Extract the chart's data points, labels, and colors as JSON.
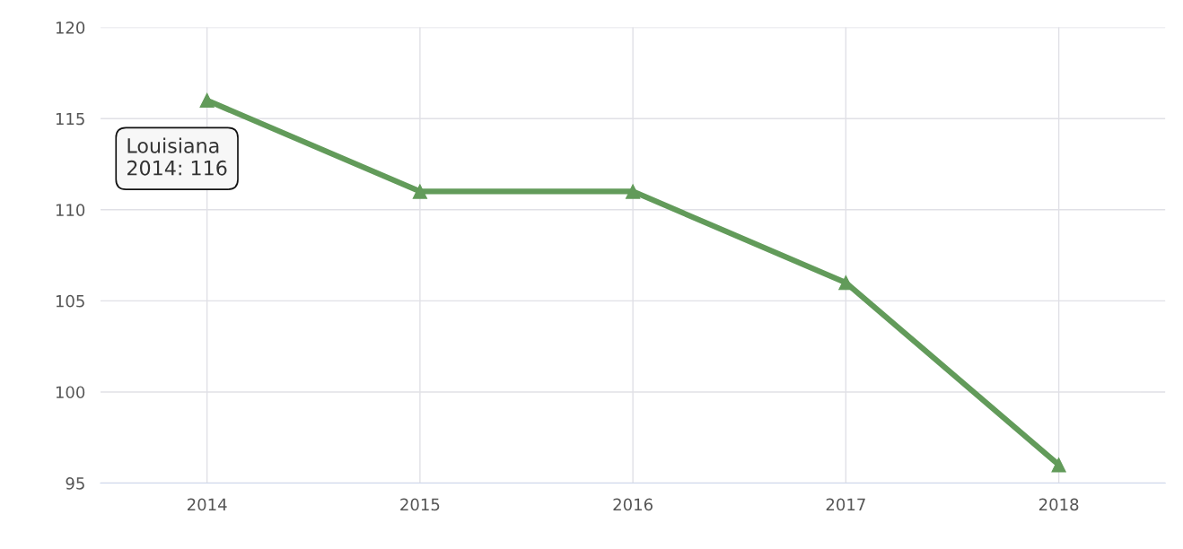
{
  "chart_data": {
    "type": "line",
    "categories": [
      "2014",
      "2015",
      "2016",
      "2017",
      "2018"
    ],
    "series": [
      {
        "color": "#629b5a",
        "values": [
          116,
          111,
          111,
          106,
          96
        ]
      }
    ],
    "ylim": [
      95,
      120
    ],
    "yticks": [
      95,
      100,
      105,
      110,
      115,
      120
    ],
    "grid": true,
    "marker": "triangle",
    "line_style": "solid",
    "annotations": [
      {
        "text": "Louisiana\n2014: 116",
        "x": "2014",
        "y": 116
      }
    ]
  }
}
